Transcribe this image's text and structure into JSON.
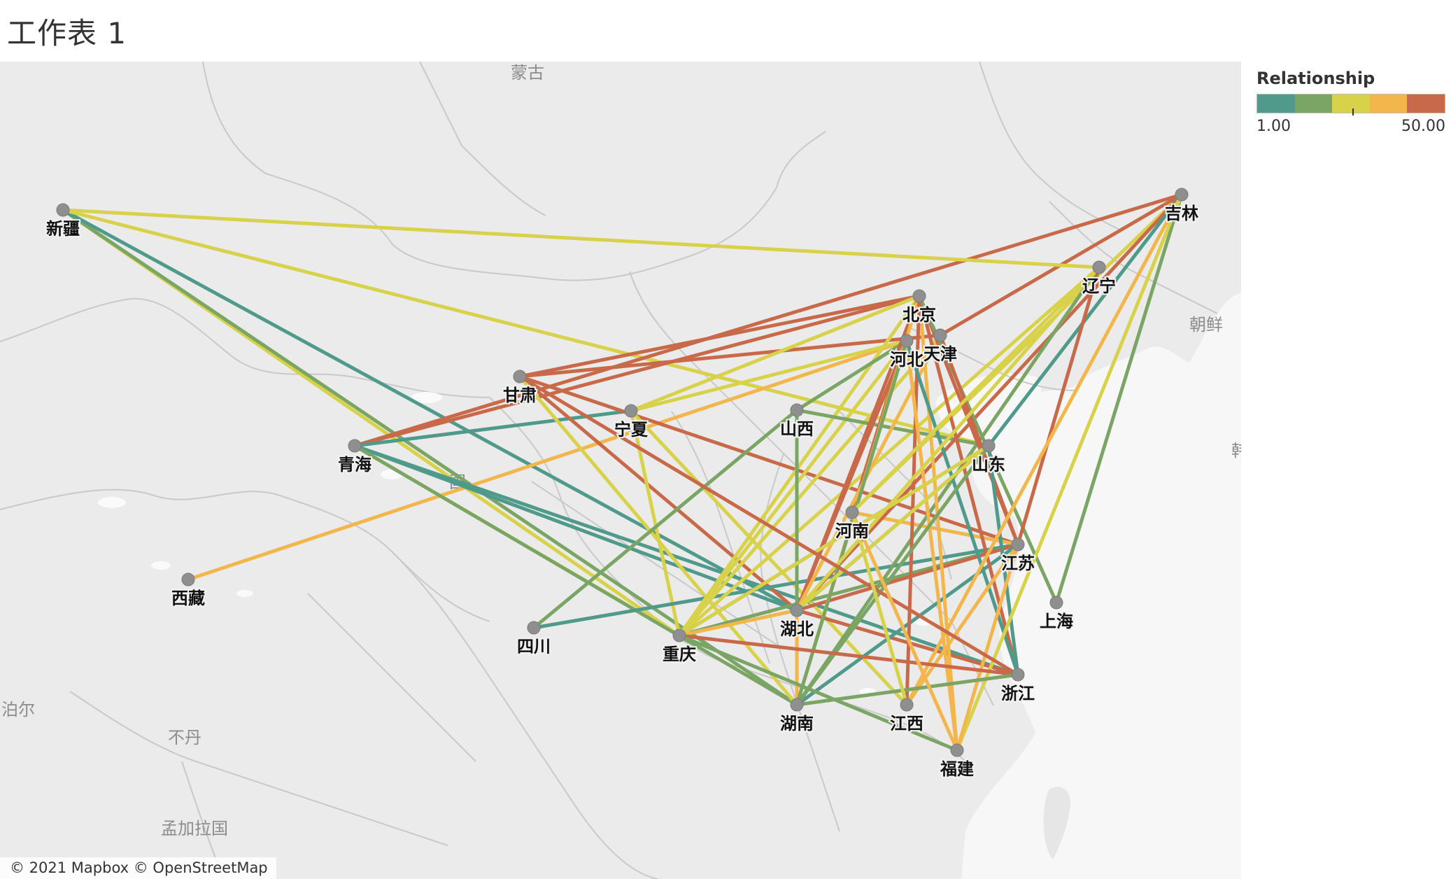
{
  "sheet_title": "工作表 1",
  "attribution": "© 2021 Mapbox © OpenStreetMap",
  "legend": {
    "title": "Relationship",
    "min_label": "1.00",
    "max_label": "50.00",
    "colors": [
      "#4f9a8a",
      "#7aa564",
      "#d8d24a",
      "#f2b64c",
      "#c86a4a"
    ]
  },
  "background_labels": [
    "朝鲜",
    "韩",
    "泊尔",
    "不丹",
    "孟加拉国",
    "国",
    "蒙古"
  ],
  "provinces": [
    {
      "name": "新疆"
    },
    {
      "name": "西藏"
    },
    {
      "name": "青海"
    },
    {
      "name": "甘肃"
    },
    {
      "name": "宁夏"
    },
    {
      "name": "四川"
    },
    {
      "name": "重庆"
    },
    {
      "name": "山西"
    },
    {
      "name": "河南"
    },
    {
      "name": "湖北"
    },
    {
      "name": "湖南"
    },
    {
      "name": "北京"
    },
    {
      "name": "河北"
    },
    {
      "name": "天津"
    },
    {
      "name": "山东"
    },
    {
      "name": "江苏"
    },
    {
      "name": "上海"
    },
    {
      "name": "浙江"
    },
    {
      "name": "江西"
    },
    {
      "name": "福建"
    },
    {
      "name": "辽宁"
    },
    {
      "name": "吉林"
    }
  ],
  "connections": [
    {
      "from": "新疆",
      "to": "重庆",
      "value": 22
    },
    {
      "from": "新疆",
      "to": "湖南",
      "value": 12
    },
    {
      "from": "新疆",
      "to": "湖北",
      "value": 10
    },
    {
      "from": "新疆",
      "to": "山东",
      "value": 28
    },
    {
      "from": "西藏",
      "to": "河北",
      "value": 40
    },
    {
      "from": "青海",
      "to": "吉林",
      "value": 48
    },
    {
      "from": "青海",
      "to": "北京",
      "value": 48
    },
    {
      "from": "青海",
      "to": "宁夏",
      "value": 3
    },
    {
      "from": "青海",
      "to": "湖北",
      "value": 3
    },
    {
      "from": "青海",
      "to": "重庆",
      "value": 26
    },
    {
      "from": "青海",
      "to": "浙江",
      "value": 8
    },
    {
      "from": "青海",
      "to": "湖南",
      "value": 12
    },
    {
      "from": "甘肃",
      "to": "北京",
      "value": 48
    },
    {
      "from": "甘肃",
      "to": "天津",
      "value": 48
    },
    {
      "from": "甘肃",
      "to": "湖北",
      "value": 48
    },
    {
      "from": "甘肃",
      "to": "湖南",
      "value": 26
    },
    {
      "from": "甘肃",
      "to": "江苏",
      "value": 48
    },
    {
      "from": "宁夏",
      "to": "北京",
      "value": 26
    },
    {
      "from": "宁夏",
      "to": "河北",
      "value": 26
    },
    {
      "from": "宁夏",
      "to": "重庆",
      "value": 26
    },
    {
      "from": "宁夏",
      "to": "江西",
      "value": 26
    },
    {
      "from": "四川",
      "to": "山西",
      "value": 12
    },
    {
      "from": "四川",
      "to": "江苏",
      "value": 10
    },
    {
      "from": "重庆",
      "to": "北京",
      "value": 26
    },
    {
      "from": "重庆",
      "to": "河北",
      "value": 26
    },
    {
      "from": "重庆",
      "to": "天津",
      "value": 26
    },
    {
      "from": "重庆",
      "to": "辽宁",
      "value": 28
    },
    {
      "from": "重庆",
      "to": "山东",
      "value": 3
    },
    {
      "from": "重庆",
      "to": "江苏",
      "value": 12
    },
    {
      "from": "重庆",
      "to": "湖北",
      "value": 40
    },
    {
      "from": "山西",
      "to": "湖北",
      "value": 12
    },
    {
      "from": "山西",
      "to": "山东",
      "value": 12
    },
    {
      "from": "山西",
      "to": "河北",
      "value": 12
    },
    {
      "from": "河南",
      "to": "北京",
      "value": 48
    },
    {
      "from": "河南",
      "to": "江苏",
      "value": 40
    },
    {
      "from": "河南",
      "to": "吉林",
      "value": 26
    },
    {
      "from": "湖北",
      "to": "北京",
      "value": 48
    },
    {
      "from": "湖北",
      "to": "河北",
      "value": 48
    },
    {
      "from": "湖北",
      "to": "天津",
      "value": 40
    },
    {
      "from": "湖北",
      "to": "山东",
      "value": 3
    },
    {
      "from": "湖北",
      "to": "江苏",
      "value": 48
    },
    {
      "from": "湖北",
      "to": "浙江",
      "value": 48
    },
    {
      "from": "湖北",
      "to": "吉林",
      "value": 48
    },
    {
      "from": "湖北",
      "to": "湖南",
      "value": 40
    },
    {
      "from": "湖南",
      "to": "北京",
      "value": 40
    },
    {
      "from": "湖南",
      "to": "河北",
      "value": 12
    },
    {
      "from": "湖南",
      "to": "辽宁",
      "value": 12
    },
    {
      "from": "湖南",
      "to": "江苏",
      "value": 10
    },
    {
      "from": "北京",
      "to": "江苏",
      "value": 48
    },
    {
      "from": "北京",
      "to": "福建",
      "value": 40
    },
    {
      "from": "北京",
      "to": "浙江",
      "value": 48
    },
    {
      "from": "北京",
      "to": "上海",
      "value": 12
    },
    {
      "from": "北京",
      "to": "江西",
      "value": 48
    },
    {
      "from": "河北",
      "to": "福建",
      "value": 40
    },
    {
      "from": "河北",
      "to": "浙江",
      "value": 3
    },
    {
      "from": "天津",
      "to": "吉林",
      "value": 48
    },
    {
      "from": "天津",
      "to": "江苏",
      "value": 48
    },
    {
      "from": "山东",
      "to": "吉林",
      "value": 3
    },
    {
      "from": "山东",
      "to": "湖北",
      "value": 26
    },
    {
      "from": "山东",
      "to": "湖南",
      "value": 12
    },
    {
      "from": "山东",
      "to": "重庆",
      "value": 26
    },
    {
      "from": "山东",
      "to": "浙江",
      "value": 3
    },
    {
      "from": "辽宁",
      "to": "江苏",
      "value": 48
    },
    {
      "from": "辽宁",
      "to": "河南",
      "value": 28
    },
    {
      "from": "辽宁",
      "to": "湖北",
      "value": 26
    },
    {
      "from": "吉林",
      "to": "上海",
      "value": 12
    },
    {
      "from": "吉林",
      "to": "江西",
      "value": 40
    },
    {
      "from": "吉林",
      "to": "福建",
      "value": 26
    },
    {
      "from": "江苏",
      "to": "福建",
      "value": 40
    },
    {
      "from": "江苏",
      "to": "江西",
      "value": 40
    },
    {
      "from": "浙江",
      "to": "重庆",
      "value": 48
    },
    {
      "from": "浙江",
      "to": "湖南",
      "value": 12
    },
    {
      "from": "浙江",
      "to": "甘肃",
      "value": 48
    },
    {
      "from": "福建",
      "to": "河南",
      "value": 40
    },
    {
      "from": "福建",
      "to": "重庆",
      "value": 12
    },
    {
      "from": "江西",
      "to": "河南",
      "value": 26
    },
    {
      "from": "新疆",
      "to": "辽宁",
      "value": 28
    }
  ]
}
